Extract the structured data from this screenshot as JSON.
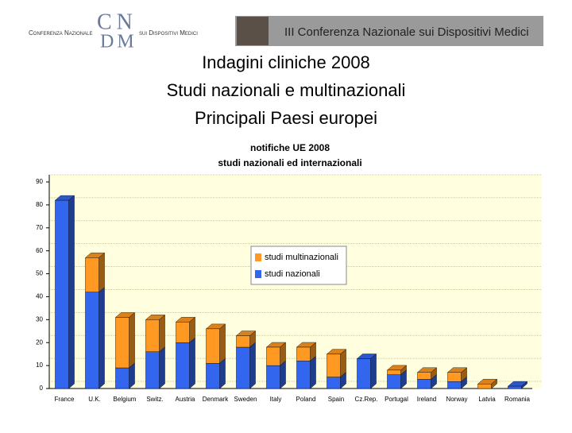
{
  "header": {
    "logo_left": "Conferenza Nazionale",
    "logo_top": "CN",
    "logo_bottom": "DM",
    "logo_right": "sui Dispositivi Medici",
    "banner": "III Conferenza Nazionale sui Dispositivi Medici"
  },
  "title_lines": [
    "Indagini cliniche 2008",
    "Studi nazionali e multinazionali",
    "Principali Paesi europei"
  ],
  "chart_data": {
    "type": "stacked_bar",
    "title": "notifiche UE 2008",
    "subtitle": "studi nazionali ed internazionali",
    "categories": [
      "France",
      "U.K.",
      "Belgium",
      "Switz.",
      "Austria",
      "Denmark",
      "Sweden",
      "Italy",
      "Poland",
      "Spain",
      "Cz.Rep.",
      "Portugal",
      "Ireland",
      "Norway",
      "Latvia",
      "Romania"
    ],
    "series": [
      {
        "name": "studi nazionali",
        "color": "#3366ee",
        "values": [
          82,
          42,
          9,
          16,
          20,
          11,
          18,
          10,
          12,
          5,
          13,
          6,
          4,
          3,
          0,
          1
        ]
      },
      {
        "name": "studi multinazionali",
        "color": "#ff9922",
        "values": [
          0,
          15,
          22,
          14,
          9,
          15,
          5,
          8,
          6,
          10,
          0,
          2,
          3,
          4,
          2,
          0
        ]
      }
    ],
    "ylim": [
      0,
      90
    ],
    "yticks": [
      0,
      10,
      20,
      30,
      40,
      50,
      60,
      70,
      80,
      90
    ],
    "grid": true
  }
}
